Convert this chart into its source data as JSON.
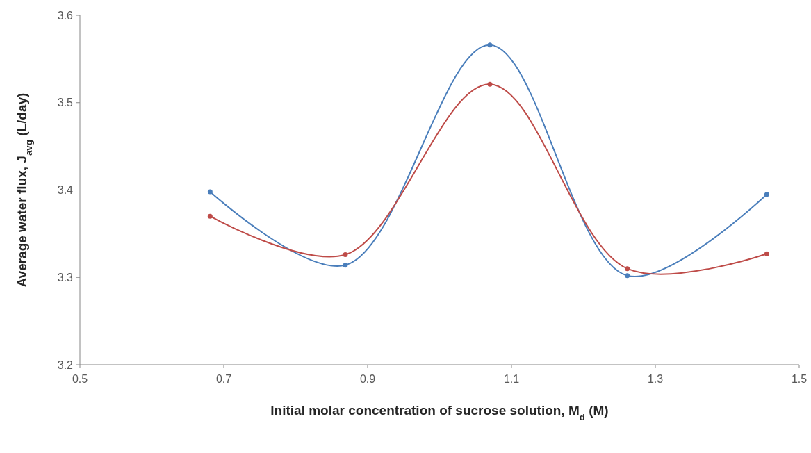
{
  "chart_data": {
    "type": "line",
    "xlabel": "Initial molar concentration of sucrose solution, M$_{d}$ (M)",
    "ylabel": "Average water flux, J$_{avg}$ (L/day)",
    "xlim": [
      0.5,
      1.5
    ],
    "xticks": [
      0.5,
      0.7,
      0.9,
      1.1,
      1.3,
      1.5
    ],
    "ylim": [
      3.2,
      3.6
    ],
    "yticks": [
      3.2,
      3.3,
      3.4,
      3.5,
      3.6
    ],
    "grid": false,
    "marker": "circle",
    "line_style": "solid",
    "x": [
      0.681,
      0.869,
      1.07,
      1.261,
      1.455
    ],
    "series": [
      {
        "color": "#4a7ebb",
        "values": [
          3.398,
          3.314,
          3.566,
          3.302,
          3.395
        ]
      },
      {
        "color": "#be4b48",
        "values": [
          3.37,
          3.326,
          3.521,
          3.31,
          3.327
        ]
      }
    ]
  }
}
